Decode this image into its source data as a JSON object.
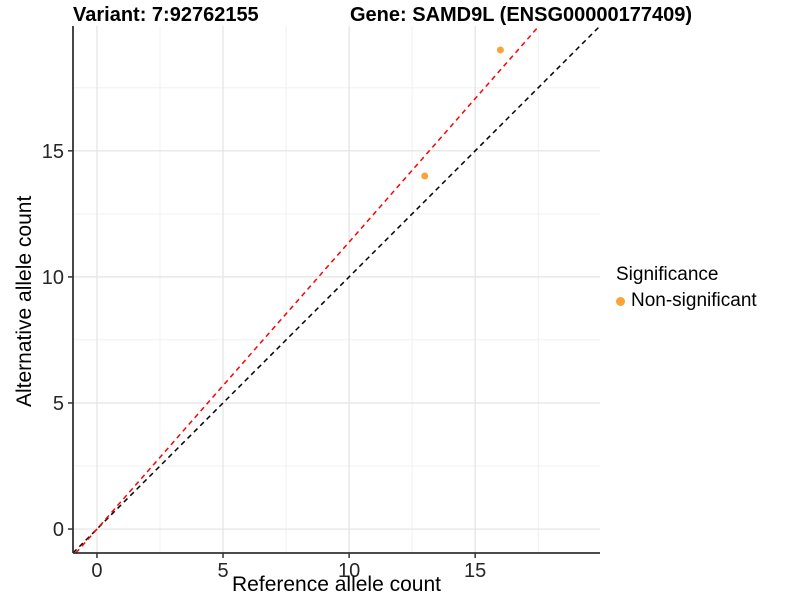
{
  "header": {
    "variant_title": "Variant: 7:92762155",
    "gene_title": "Gene: SAMD9L (ENSG00000177409)"
  },
  "chart_data": {
    "type": "scatter",
    "xlabel": "Reference allele count",
    "ylabel": "Alternative allele count",
    "xlim": [
      -0.95,
      19.95
    ],
    "ylim": [
      -0.95,
      19.95
    ],
    "x_major_ticks": [
      0,
      5,
      10,
      15
    ],
    "y_major_ticks": [
      0,
      5,
      10,
      15
    ],
    "x_minor_ticks": [
      2.5,
      7.5,
      12.5,
      17.5
    ],
    "y_minor_ticks": [
      2.5,
      7.5,
      12.5,
      17.5
    ],
    "grid": "major+minor",
    "legend_position": "right",
    "series": [
      {
        "name": "Non-significant",
        "color": "#FBA338",
        "marker": "circle",
        "points": [
          {
            "x": 13,
            "y": 14
          },
          {
            "x": 16,
            "y": 19
          }
        ]
      }
    ],
    "ablines": [
      {
        "name": "identity-line",
        "slope": 1,
        "intercept": 0,
        "color": "#000000",
        "linetype": "dashed"
      },
      {
        "name": "expected-ratio-line",
        "slope": 1.138,
        "intercept": 0,
        "color": "#FF0000",
        "linetype": "dashed"
      }
    ],
    "legend": {
      "title": "Significance",
      "items": [
        {
          "label": "Non-significant",
          "color": "#FBA338",
          "marker": "circle"
        }
      ]
    }
  },
  "style": {
    "grid_major_color": "#E3E3E3",
    "grid_minor_color": "#F0F0F0",
    "axis_line_color": "#333333",
    "tick_mark_color": "#333333",
    "tick_label_color": "#262626",
    "point_color": "#FBA338",
    "background_color": "#FFFFFF"
  }
}
